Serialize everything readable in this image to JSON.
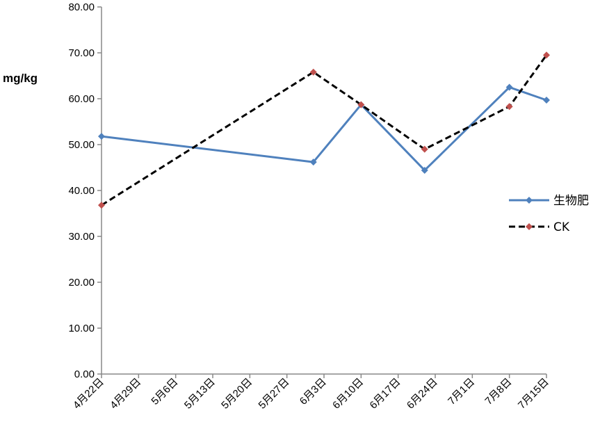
{
  "chart_data": {
    "type": "line",
    "ylabel": "mg/kg",
    "xlabel": "",
    "title": "",
    "ylim": [
      0,
      80
    ],
    "ytick_step": 10,
    "ytick_labels": [
      "0.00",
      "10.00",
      "20.00",
      "30.00",
      "40.00",
      "50.00",
      "60.00",
      "70.00",
      "80.00"
    ],
    "x_tick_labels": [
      "4月22日",
      "4月29日",
      "5月6日",
      "5月13日",
      "5月20日",
      "5月27日",
      "6月3日",
      "6月10日",
      "6月17日",
      "6月24日",
      "7月1日",
      "7月8日",
      "7月15日"
    ],
    "x_range_days": [
      0,
      84
    ],
    "grid": false,
    "legend_position": "right",
    "series": [
      {
        "name": "生物肥",
        "color": "#4F81BD",
        "marker_color": "#4F81BD",
        "dash": "solid",
        "points": [
          {
            "date": "4月22日",
            "day": 0,
            "y": 51.8
          },
          {
            "date": "6月1日",
            "day": 40,
            "y": 46.2
          },
          {
            "date": "6月10日",
            "day": 49,
            "y": 58.7
          },
          {
            "date": "6月22日",
            "day": 61,
            "y": 44.4
          },
          {
            "date": "7月8日",
            "day": 77,
            "y": 62.5
          },
          {
            "date": "7月15日",
            "day": 84,
            "y": 59.7
          }
        ]
      },
      {
        "name": "CK",
        "color": "#000000",
        "marker_color": "#C0504D",
        "dash": "dashed",
        "points": [
          {
            "date": "4月22日",
            "day": 0,
            "y": 36.8
          },
          {
            "date": "6月1日",
            "day": 40,
            "y": 65.8
          },
          {
            "date": "6月10日",
            "day": 49,
            "y": 58.7
          },
          {
            "date": "6月22日",
            "day": 61,
            "y": 49.0
          },
          {
            "date": "7月8日",
            "day": 77,
            "y": 58.3
          },
          {
            "date": "7月15日",
            "day": 84,
            "y": 69.5
          }
        ]
      }
    ]
  }
}
